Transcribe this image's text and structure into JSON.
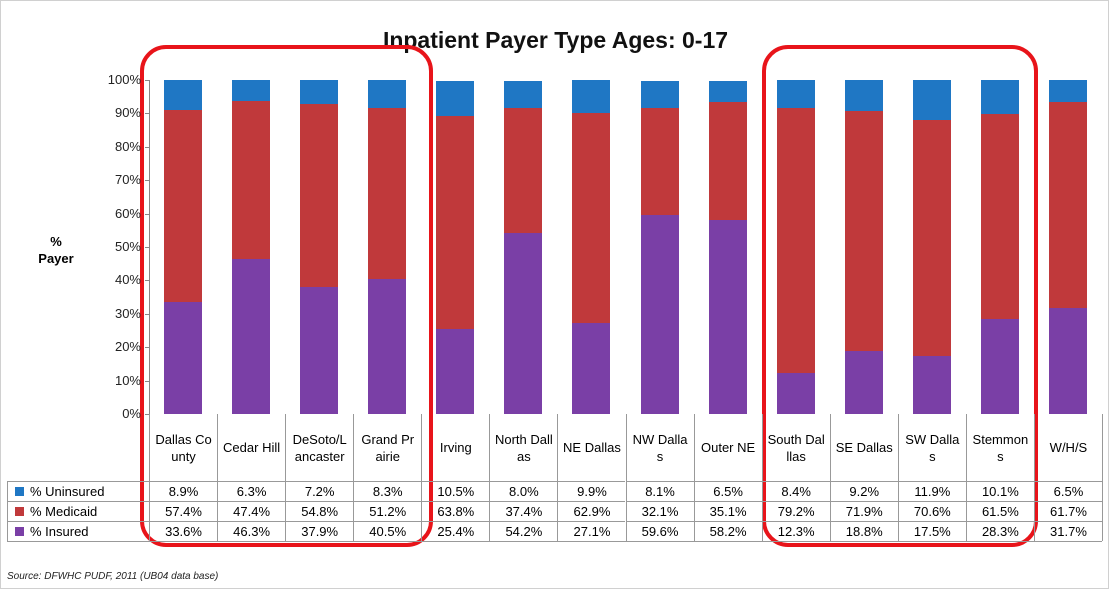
{
  "chart_data": {
    "type": "stacked_bar",
    "title": "Inpatient Payer Type Ages: 0-17",
    "y_label": "% Payer",
    "source": "Source: DFWHC PUDF, 2011 (UB04 data base)",
    "categories": [
      "Dallas County",
      "Cedar Hill",
      "DeSoto/Lancaster",
      "Grand Prairie",
      "Irving",
      "North Dallas",
      "NE Dallas",
      "NW Dallas",
      "Outer NE",
      "South Dalllas",
      "SE Dallas",
      "SW Dallas",
      "Stemmons",
      "W/H/S"
    ],
    "series": [
      {
        "name": "% Uninsured",
        "color": "#1f77c4",
        "values": [
          8.9,
          6.3,
          7.2,
          8.3,
          10.5,
          8.0,
          9.9,
          8.1,
          6.5,
          8.4,
          9.2,
          11.9,
          10.1,
          6.5
        ],
        "value_labels": [
          "8.9%",
          "6.3%",
          "7.2%",
          "8.3%",
          "10.5%",
          "8.0%",
          "9.9%",
          "8.1%",
          "6.5%",
          "8.4%",
          "9.2%",
          "11.9%",
          "10.1%",
          "6.5%"
        ]
      },
      {
        "name": "% Medicaid",
        "color": "#c0393b",
        "values": [
          57.4,
          47.4,
          54.8,
          51.2,
          63.8,
          37.4,
          62.9,
          32.1,
          35.1,
          79.2,
          71.9,
          70.6,
          61.5,
          61.7
        ],
        "value_labels": [
          "57.4%",
          "47.4%",
          "54.8%",
          "51.2%",
          "63.8%",
          "37.4%",
          "62.9%",
          "32.1%",
          "35.1%",
          "79.2%",
          "71.9%",
          "70.6%",
          "61.5%",
          "61.7%"
        ]
      },
      {
        "name": "% Insured",
        "color": "#7a3fa6",
        "values": [
          33.6,
          46.3,
          37.9,
          40.5,
          25.4,
          54.2,
          27.1,
          59.6,
          58.2,
          12.3,
          18.8,
          17.5,
          28.3,
          31.7
        ],
        "value_labels": [
          "33.6%",
          "46.3%",
          "37.9%",
          "40.5%",
          "25.4%",
          "54.2%",
          "27.1%",
          "59.6%",
          "58.2%",
          "12.3%",
          "18.8%",
          "17.5%",
          "28.3%",
          "31.7%"
        ]
      }
    ],
    "ylim": [
      0,
      100
    ],
    "yticks": [
      {
        "value": 0,
        "label": "0%"
      },
      {
        "value": 10,
        "label": "10%"
      },
      {
        "value": 20,
        "label": "20%"
      },
      {
        "value": 30,
        "label": "30%"
      },
      {
        "value": 40,
        "label": "40%"
      },
      {
        "value": 50,
        "label": "50%"
      },
      {
        "value": 60,
        "label": "60%"
      },
      {
        "value": 70,
        "label": "70%"
      },
      {
        "value": 80,
        "label": "80%"
      },
      {
        "value": 90,
        "label": "90%"
      },
      {
        "value": 100,
        "label": "100%"
      }
    ]
  }
}
